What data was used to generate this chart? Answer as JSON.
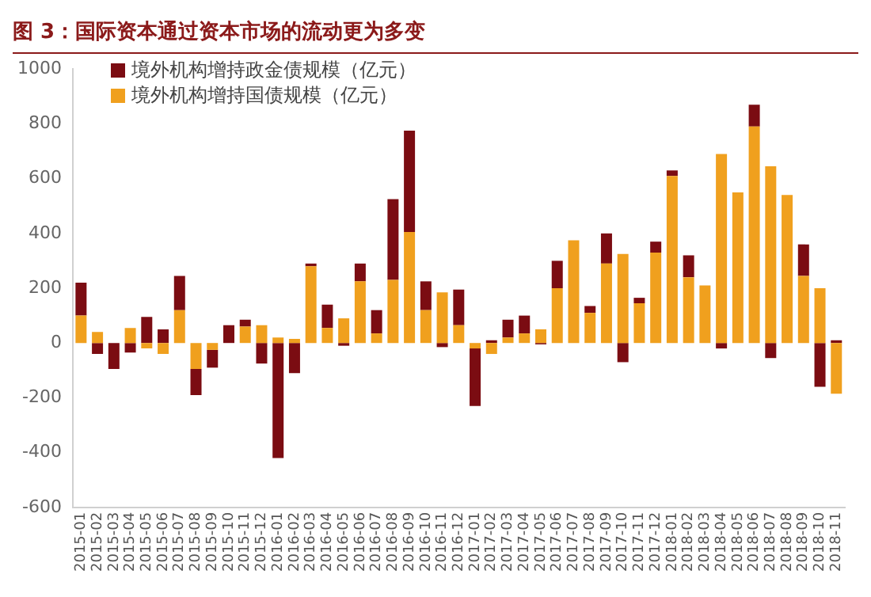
{
  "chart_data": {
    "type": "bar",
    "title": "图 3：国际资本通过资本市场的流动更为多变",
    "stacked": true,
    "legend": "top left",
    "grid": false,
    "categories": [
      "2015-01",
      "2015-02",
      "2015-03",
      "2015-04",
      "2015-05",
      "2015-06",
      "2015-07",
      "2015-08",
      "2015-09",
      "2015-10",
      "2015-11",
      "2015-12",
      "2016-01",
      "2016-02",
      "2016-03",
      "2016-04",
      "2016-05",
      "2016-06",
      "2016-07",
      "2016-08",
      "2016-09",
      "2016-10",
      "2016-11",
      "2016-12",
      "2017-01",
      "2017-02",
      "2017-03",
      "2017-04",
      "2017-05",
      "2017-06",
      "2017-07",
      "2017-08",
      "2017-09",
      "2017-10",
      "2017-11",
      "2017-12",
      "2018-01",
      "2018-02",
      "2018-03",
      "2018-04",
      "2018-05",
      "2018-06",
      "2018-07",
      "2018-08",
      "2018-09",
      "2018-10",
      "2018-11"
    ],
    "series": [
      {
        "name": "境外机构增持国债规模（亿元）",
        "color": "#f0a01e",
        "values": [
          100,
          40,
          0,
          55,
          -20,
          -40,
          120,
          -95,
          -25,
          0,
          60,
          65,
          20,
          15,
          280,
          55,
          90,
          225,
          35,
          230,
          405,
          120,
          185,
          65,
          -20,
          -40,
          20,
          35,
          50,
          200,
          375,
          110,
          290,
          325,
          145,
          330,
          610,
          240,
          210,
          690,
          550,
          790,
          645,
          540,
          245,
          200,
          -185
        ]
      },
      {
        "name": "境外机构增持政金债规模（亿元）",
        "color": "#7b0c12",
        "values": [
          120,
          -40,
          -95,
          -35,
          95,
          50,
          125,
          -95,
          -65,
          65,
          25,
          -75,
          -420,
          -110,
          10,
          85,
          -10,
          65,
          85,
          295,
          370,
          105,
          -15,
          130,
          -210,
          10,
          65,
          65,
          -5,
          100,
          0,
          25,
          110,
          -70,
          20,
          40,
          20,
          80,
          0,
          -20,
          0,
          80,
          -55,
          0,
          115,
          -160,
          10
        ]
      }
    ],
    "ylim": [
      -600,
      1000
    ],
    "yticks": [
      -600,
      -400,
      -200,
      0,
      200,
      400,
      600,
      800,
      1000
    ]
  }
}
